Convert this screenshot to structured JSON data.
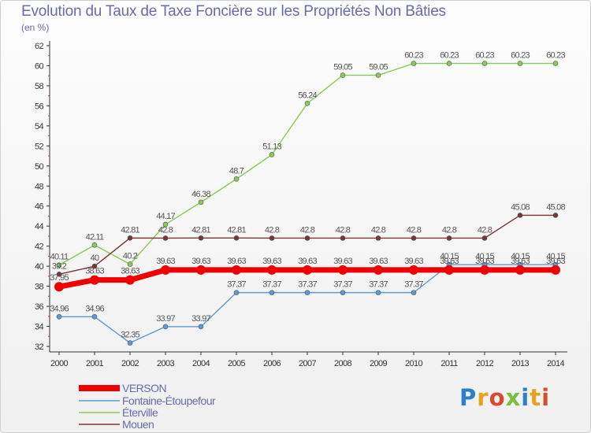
{
  "chart_data": {
    "type": "line",
    "title": "Evolution du Taux de Taxe Foncière sur les Propriétés Non Bâties",
    "ylabel": "(en %)",
    "xlabel": "",
    "ylim": [
      32,
      62
    ],
    "yticks": [
      32,
      34,
      36,
      38,
      40,
      42,
      44,
      46,
      48,
      50,
      52,
      54,
      56,
      58,
      60,
      62
    ],
    "x": [
      2000,
      2001,
      2002,
      2003,
      2004,
      2005,
      2006,
      2007,
      2008,
      2009,
      2010,
      2011,
      2012,
      2013,
      2014
    ],
    "grid": false,
    "legend_position": "bottom-left",
    "series": [
      {
        "name": "Éterville",
        "color": "#88cc55",
        "values": [
          40.11,
          42.11,
          40.2,
          44.17,
          46.38,
          48.7,
          51.13,
          56.24,
          59.05,
          59.05,
          60.23,
          60.23,
          60.23,
          60.23,
          60.23
        ],
        "labels": [
          "40.11",
          "42.11",
          "40.2",
          "44.17",
          "46.38",
          "48.7",
          "51.13",
          "56.24",
          "59.05",
          "59.05",
          "60.23",
          "60.23",
          "60.23",
          "60.23",
          "60.23"
        ]
      },
      {
        "name": "Mouen",
        "color": "#7a3535",
        "values": [
          39.2,
          40,
          42.81,
          42.8,
          42.81,
          42.81,
          42.8,
          42.8,
          42.8,
          42.8,
          42.8,
          42.8,
          42.8,
          45.08,
          45.08
        ],
        "labels": [
          "39.2",
          "40",
          "42.81",
          "42.8",
          "42.81",
          "42.81",
          "42.8",
          "42.8",
          "42.8",
          "42.8",
          "42.8",
          "42.8",
          "42.8",
          "45.08",
          "45.08"
        ]
      },
      {
        "name": "Fontaine-Étoupefour",
        "color": "#5a9ad5",
        "values": [
          34.96,
          34.96,
          32.35,
          33.97,
          33.97,
          37.37,
          37.37,
          37.37,
          37.37,
          37.37,
          37.37,
          40.15,
          40.15,
          40.15,
          40.15
        ],
        "labels": [
          "34.96",
          "34.96",
          "32.35",
          "33.97",
          "33.97",
          "37.37",
          "37.37",
          "37.37",
          "37.37",
          "37.37",
          "37.37",
          "40.15",
          "40.15",
          "40.15",
          "40.15"
        ]
      },
      {
        "name": "VERSON",
        "color": "#ee0000",
        "values": [
          37.95,
          38.63,
          38.63,
          39.63,
          39.63,
          39.63,
          39.63,
          39.63,
          39.63,
          39.63,
          39.63,
          39.63,
          39.63,
          39.63,
          39.63
        ],
        "labels": [
          "37.95",
          "38.63",
          "38.63",
          "39.63",
          "39.63",
          "39.63",
          "39.63",
          "39.63",
          "39.63",
          "39.63",
          "39.63",
          "39.63",
          "39.63",
          "39.63",
          "39.63"
        ]
      }
    ],
    "legend": [
      "VERSON",
      "Fontaine-Étoupefour",
      "Éterville",
      "Mouen"
    ]
  },
  "brand": {
    "letters": [
      "P",
      "r",
      "o",
      "x",
      "i",
      "t",
      "i"
    ]
  }
}
